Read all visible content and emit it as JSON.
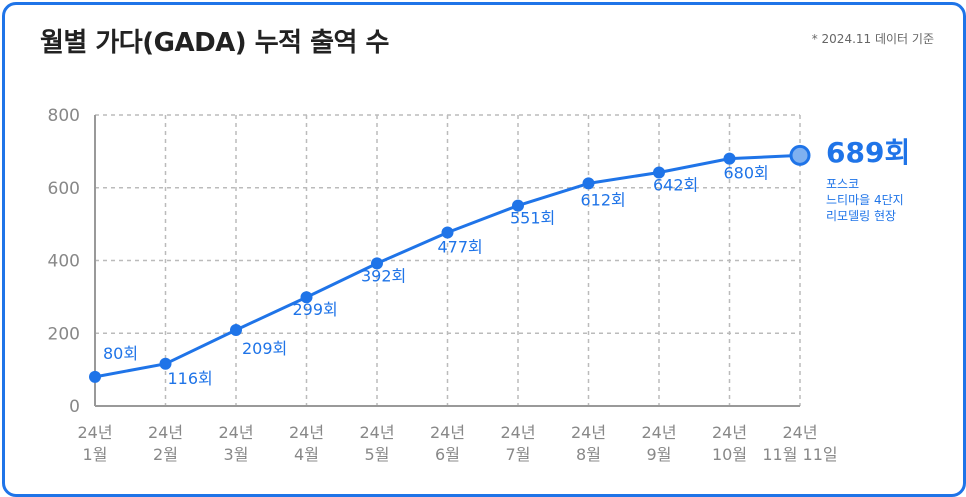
{
  "title": "월별 가다(GADA) 누적 출역 수",
  "note": "* 2024.11 데이터 기준",
  "colors": {
    "accent": "#1f74e8",
    "grid": "#bbbbbb",
    "text": "#888888"
  },
  "chart_data": {
    "type": "line",
    "title": "월별 가다(GADA) 누적 출역 수",
    "categories": [
      [
        "24년",
        "1월"
      ],
      [
        "24년",
        "2월"
      ],
      [
        "24년",
        "3월"
      ],
      [
        "24년",
        "4월"
      ],
      [
        "24년",
        "5월"
      ],
      [
        "24년",
        "6월"
      ],
      [
        "24년",
        "7월"
      ],
      [
        "24년",
        "8월"
      ],
      [
        "24년",
        "9월"
      ],
      [
        "24년",
        "10월"
      ],
      [
        "24년",
        "11월 11일"
      ]
    ],
    "values": [
      80,
      116,
      209,
      299,
      392,
      477,
      551,
      612,
      642,
      680,
      689
    ],
    "data_labels": [
      "80회",
      "116회",
      "209회",
      "299회",
      "392회",
      "477회",
      "551회",
      "612회",
      "642회",
      "680회",
      "689회"
    ],
    "final_annotation": [
      "포스코",
      "느티마을 4단지",
      "리모델링 현장"
    ],
    "yticks": [
      0,
      200,
      400,
      600,
      800
    ],
    "ylim": [
      0,
      800
    ],
    "grid": true,
    "legend": "none"
  }
}
